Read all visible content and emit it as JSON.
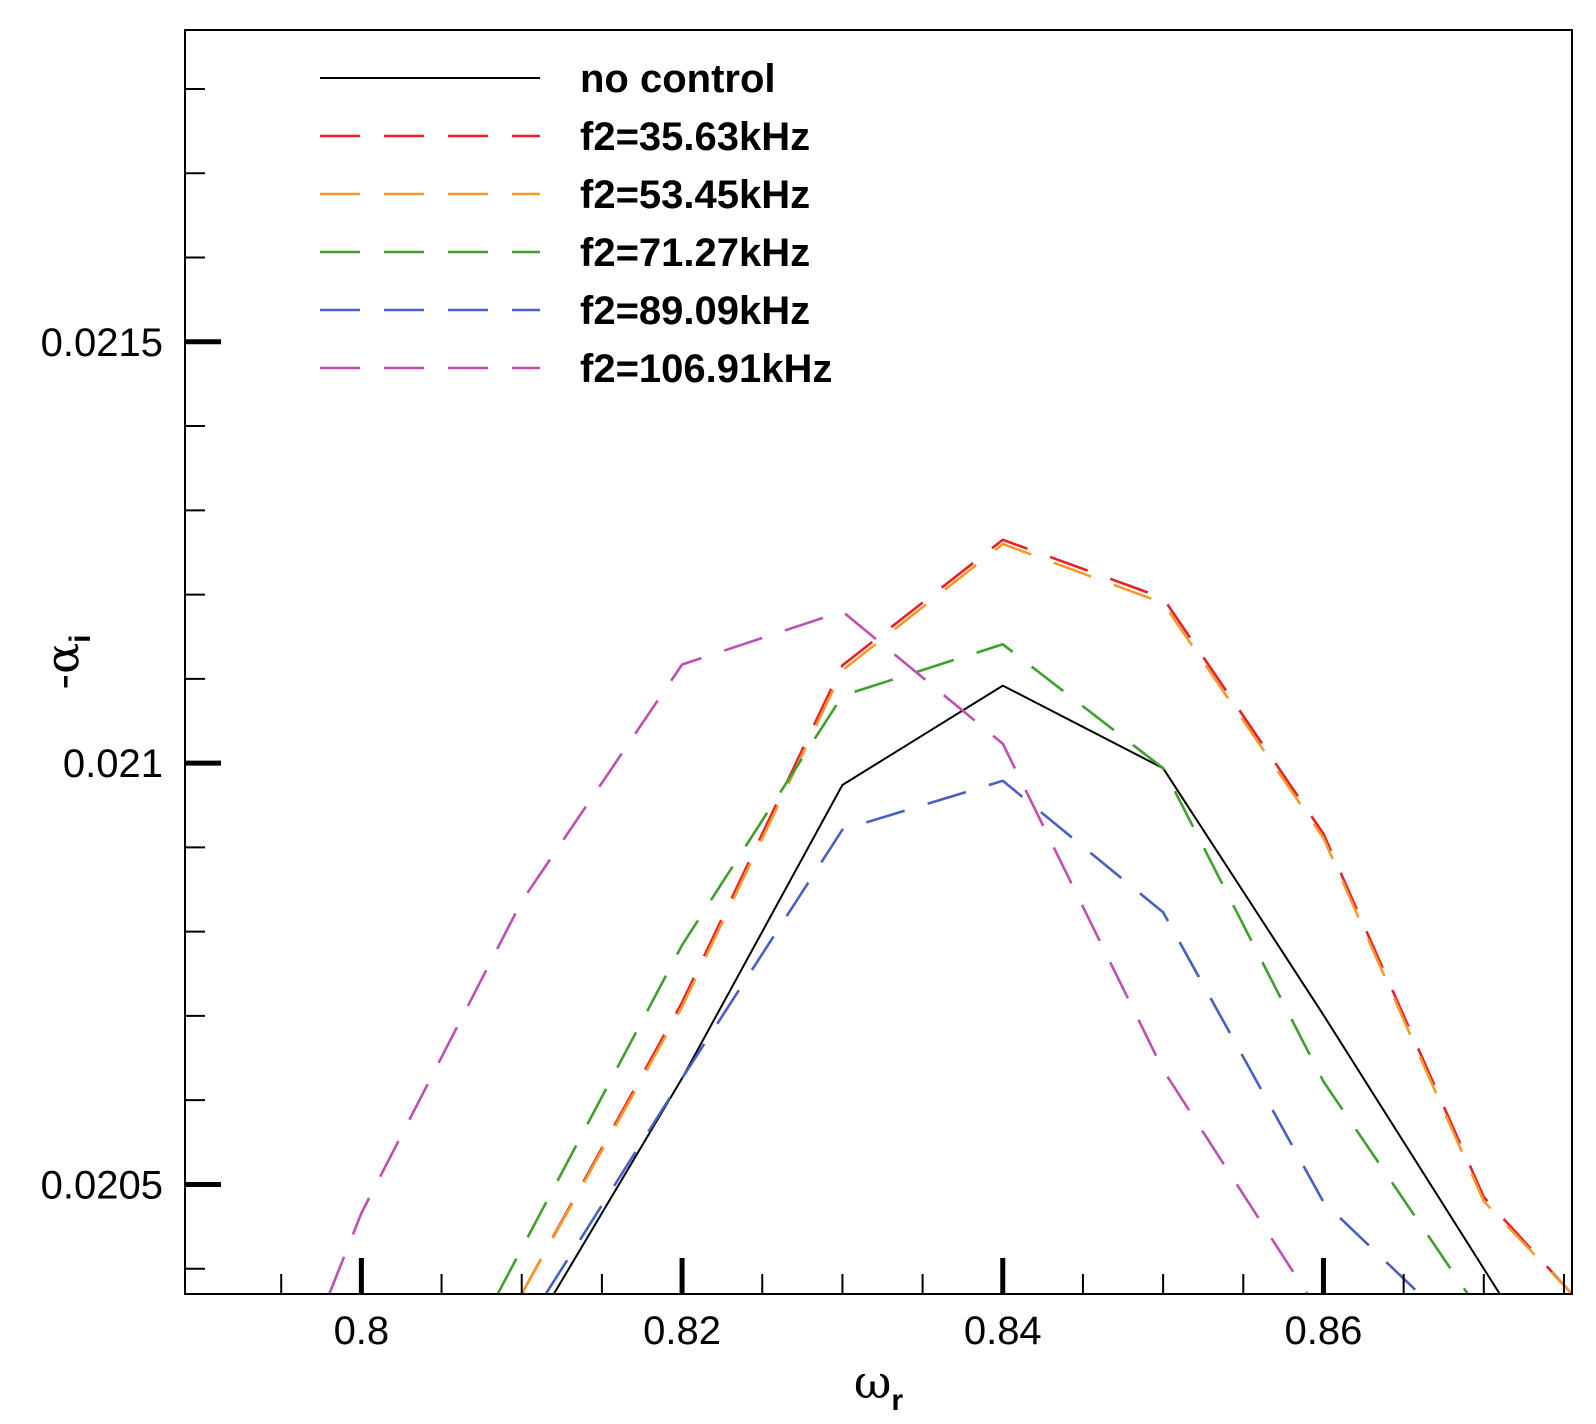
{
  "chart_data": {
    "type": "line",
    "title": "",
    "xlabel": {
      "symbol": "ω",
      "subscript": "r"
    },
    "ylabel": {
      "symbol": "-α",
      "subscript": "i"
    },
    "xlim": [
      0.789,
      0.8755
    ],
    "ylim": [
      0.02037,
      0.02187
    ],
    "x_ticks": [
      "0.8",
      "0.82",
      "0.84",
      "0.86"
    ],
    "x_tick_values": [
      0.8,
      0.82,
      0.84,
      0.86
    ],
    "y_ticks": [
      "0.0205",
      "0.021",
      "0.0215"
    ],
    "y_tick_values": [
      0.0205,
      0.021,
      0.0215
    ],
    "grid": false,
    "legend_position": "top-left",
    "series": [
      {
        "name": "no control",
        "color": "#000000",
        "dashed": false,
        "x": [
          0.812,
          0.82,
          0.83,
          0.84,
          0.85,
          0.86,
          0.871
        ],
        "y": [
          0.02037,
          0.020626,
          0.020974,
          0.021092,
          0.020994,
          0.020701,
          0.02037
        ]
      },
      {
        "name": "f2=35.63kHz",
        "color": "#e8202a",
        "dashed": true,
        "x": [
          0.81,
          0.82,
          0.83,
          0.84,
          0.85,
          0.86,
          0.87,
          0.8755
        ],
        "y": [
          0.02037,
          0.020716,
          0.021116,
          0.021265,
          0.021196,
          0.020916,
          0.020485,
          0.02037
        ]
      },
      {
        "name": "f2=53.45kHz",
        "color": "#f59a2a",
        "dashed": true,
        "x": [
          0.81,
          0.82,
          0.83,
          0.84,
          0.85,
          0.86,
          0.87,
          0.8755
        ],
        "y": [
          0.02037,
          0.020711,
          0.02111,
          0.02126,
          0.02119,
          0.020911,
          0.02048,
          0.02037
        ]
      },
      {
        "name": "f2=71.27kHz",
        "color": "#3fa02e",
        "dashed": true,
        "x": [
          0.8085,
          0.82,
          0.83,
          0.84,
          0.85,
          0.86,
          0.869
        ],
        "y": [
          0.02037,
          0.020784,
          0.02108,
          0.021141,
          0.020994,
          0.020622,
          0.02037
        ]
      },
      {
        "name": "f2=89.09kHz",
        "color": "#4a5fc2",
        "dashed": true,
        "x": [
          0.8115,
          0.82,
          0.83,
          0.84,
          0.85,
          0.86,
          0.866
        ],
        "y": [
          0.02037,
          0.020626,
          0.020921,
          0.020979,
          0.020823,
          0.020479,
          0.02037
        ]
      },
      {
        "name": "f2=106.91kHz",
        "color": "#c04fb2",
        "dashed": true,
        "x": [
          0.798,
          0.8,
          0.81,
          0.82,
          0.83,
          0.84,
          0.85,
          0.859
        ],
        "y": [
          0.02037,
          0.020466,
          0.020836,
          0.021117,
          0.02118,
          0.021023,
          0.020636,
          0.02037
        ]
      }
    ]
  }
}
